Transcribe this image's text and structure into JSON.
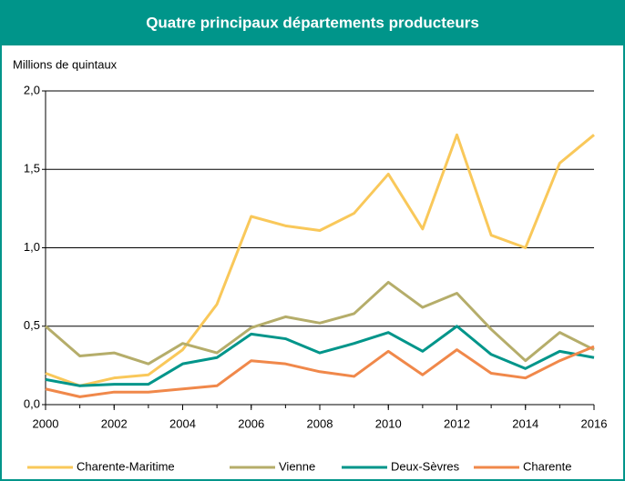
{
  "chart_data": {
    "type": "line",
    "title": "Quatre principaux départements producteurs",
    "y_label": "Millions de quintaux",
    "x": [
      2000,
      2001,
      2002,
      2003,
      2004,
      2005,
      2006,
      2007,
      2008,
      2009,
      2010,
      2011,
      2012,
      2013,
      2014,
      2015,
      2016
    ],
    "xlim": [
      2000,
      2016
    ],
    "xticks": [
      2000,
      2002,
      2004,
      2006,
      2008,
      2010,
      2012,
      2014,
      2016
    ],
    "ylim": [
      0,
      2
    ],
    "yticks": [
      {
        "value": 0,
        "label": "0,0"
      },
      {
        "value": 0.5,
        "label": "0,5"
      },
      {
        "value": 1,
        "label": "1,0"
      },
      {
        "value": 1.5,
        "label": "1,5"
      },
      {
        "value": 2,
        "label": "2,0"
      }
    ],
    "grid": true,
    "legend": "bottom",
    "series": [
      {
        "name": "Charente-Maritime",
        "color": "#f9c85a",
        "values": [
          0.2,
          0.12,
          0.17,
          0.19,
          0.35,
          0.64,
          1.2,
          1.14,
          1.11,
          1.22,
          1.47,
          1.12,
          1.72,
          1.08,
          1.0,
          1.54,
          1.72
        ]
      },
      {
        "name": "Vienne",
        "color": "#b5ad6a",
        "values": [
          0.5,
          0.31,
          0.33,
          0.26,
          0.39,
          0.33,
          0.49,
          0.56,
          0.52,
          0.58,
          0.78,
          0.62,
          0.71,
          0.48,
          0.28,
          0.46,
          0.35
        ]
      },
      {
        "name": "Deux-Sèvres",
        "color": "#00958a",
        "values": [
          0.16,
          0.12,
          0.13,
          0.13,
          0.26,
          0.3,
          0.45,
          0.42,
          0.33,
          0.39,
          0.46,
          0.34,
          0.5,
          0.32,
          0.23,
          0.34,
          0.3
        ]
      },
      {
        "name": "Charente",
        "color": "#f0884a",
        "values": [
          0.1,
          0.05,
          0.08,
          0.08,
          0.1,
          0.12,
          0.28,
          0.26,
          0.21,
          0.18,
          0.34,
          0.19,
          0.35,
          0.2,
          0.17,
          0.28,
          0.37
        ]
      }
    ]
  }
}
